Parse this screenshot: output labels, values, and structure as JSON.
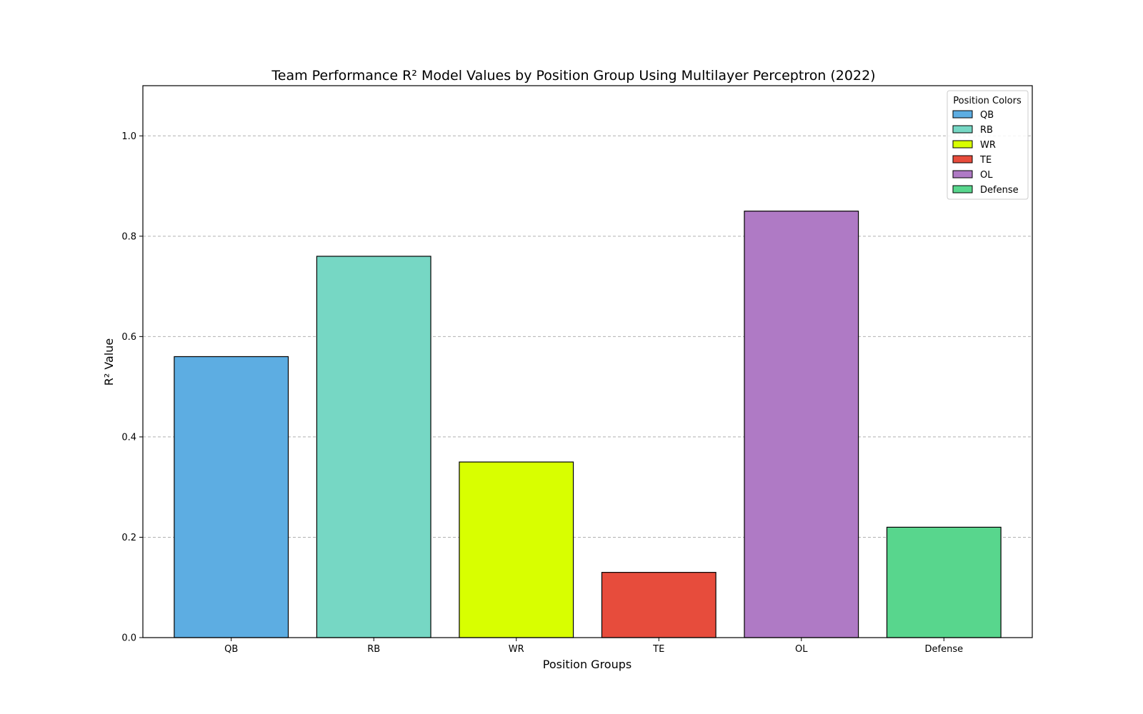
{
  "chart_data": {
    "type": "bar",
    "title": "Team Performance R² Model Values by Position Group Using Multilayer Perceptron (2022)",
    "xlabel": "Position Groups",
    "ylabel": "R² Value",
    "categories": [
      "QB",
      "RB",
      "WR",
      "TE",
      "OL",
      "Defense"
    ],
    "values": [
      0.56,
      0.76,
      0.35,
      0.13,
      0.85,
      0.22
    ],
    "colors": [
      "#5dade2",
      "#76d7c4",
      "#d8ff00",
      "#e74c3c",
      "#af7ac5",
      "#58d68d"
    ],
    "ylim": [
      0,
      1.1
    ],
    "yticks": [
      0.0,
      0.2,
      0.4,
      0.6,
      0.8,
      1.0
    ],
    "ytick_labels": [
      "0.0",
      "0.2",
      "0.4",
      "0.6",
      "0.8",
      "1.0"
    ],
    "grid": "y-dashed",
    "legend": {
      "title": "Position Colors",
      "placement": "top-right",
      "entries": [
        "QB",
        "RB",
        "WR",
        "TE",
        "OL",
        "Defense"
      ]
    }
  }
}
